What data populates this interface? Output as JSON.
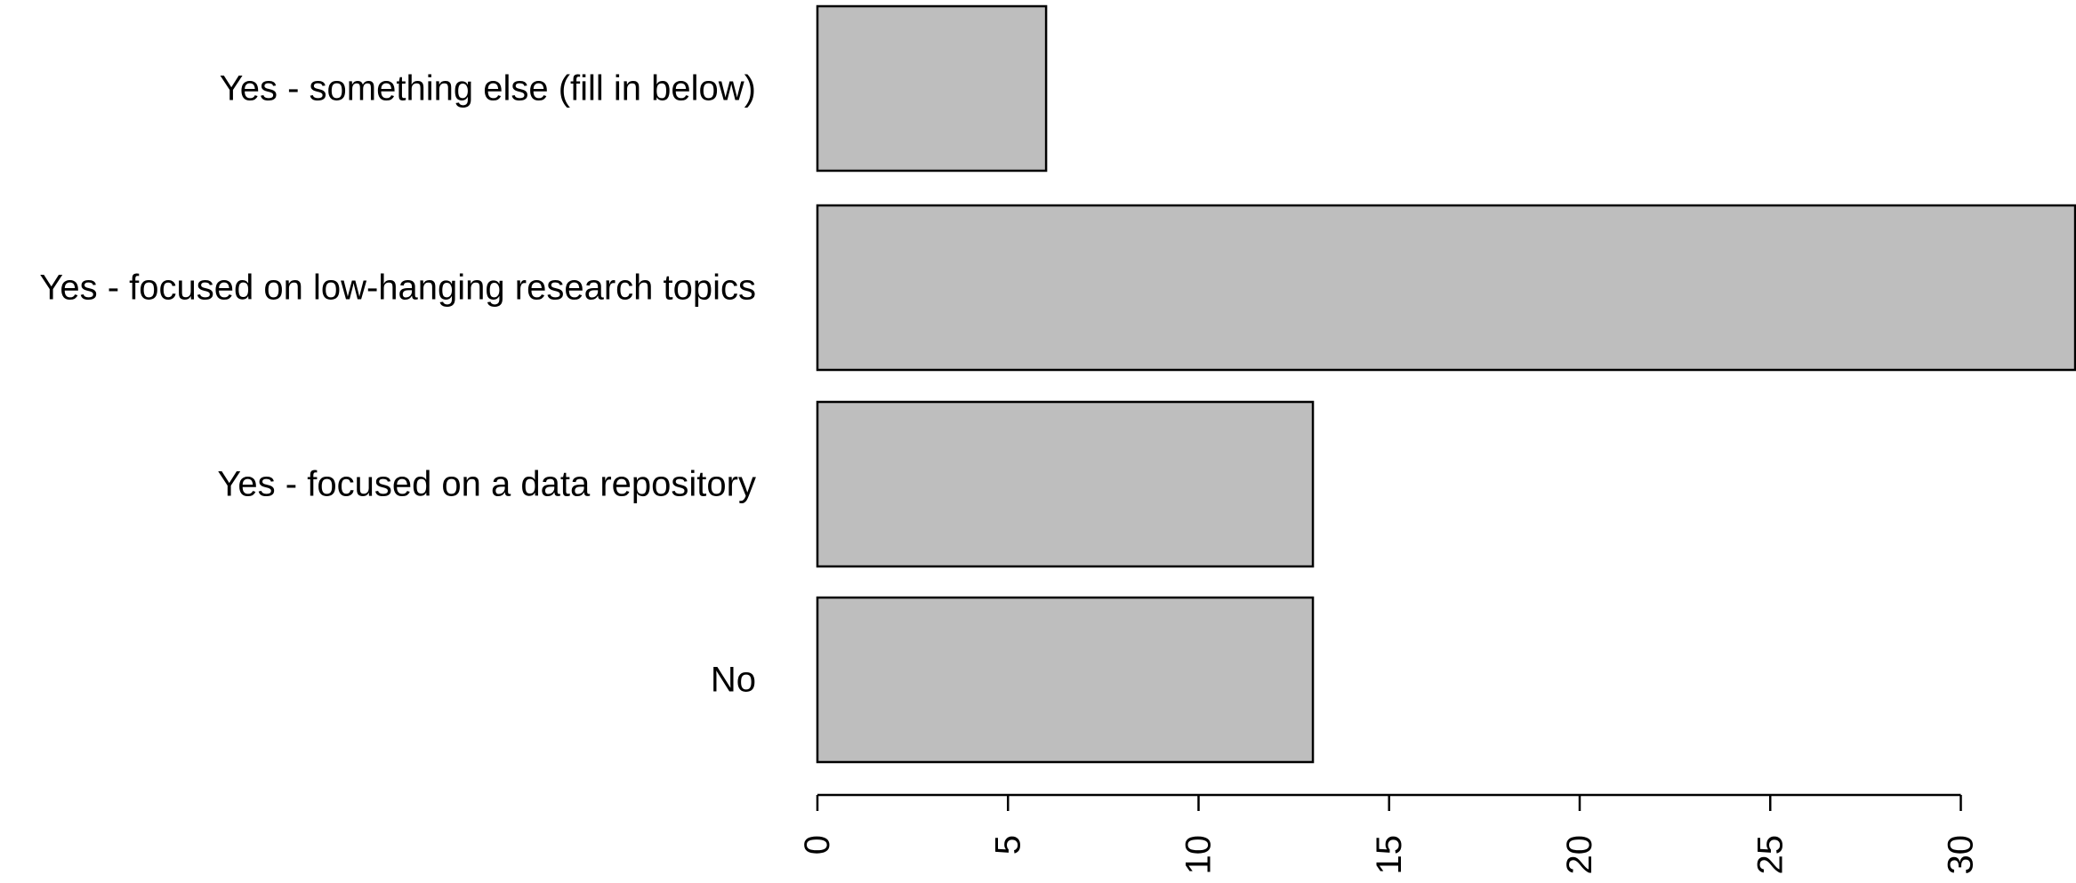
{
  "chart_data": {
    "type": "bar",
    "orientation": "horizontal",
    "categories": [
      "Yes - something else (fill in below)",
      "Yes - focused on low-hanging research topics",
      "Yes - focused on a data repository",
      "No"
    ],
    "values": [
      6,
      33,
      13,
      13
    ],
    "xlim": [
      0,
      33
    ],
    "xticks": [
      "0",
      "5",
      "10",
      "15",
      "20",
      "25",
      "30"
    ],
    "tick_label_orientation": "vertical",
    "bar_color": "#bebebe",
    "border_color": "#000000",
    "grid": false,
    "title": "",
    "xlabel": "",
    "ylabel": ""
  }
}
